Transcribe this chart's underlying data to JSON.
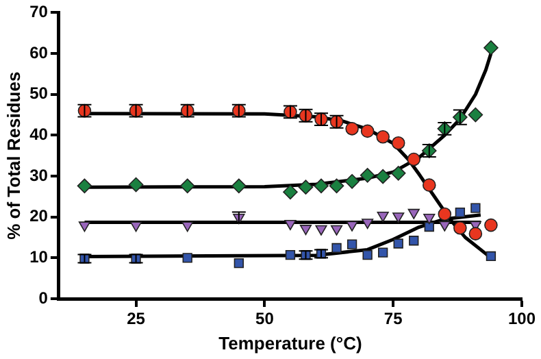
{
  "chart_data": {
    "type": "scatter",
    "xlabel": "Temperature (°C)",
    "ylabel": "% of Total Residues",
    "x": [
      15,
      25,
      35,
      45,
      55,
      58,
      61,
      64,
      67,
      70,
      73,
      76,
      79,
      82,
      85,
      88,
      91,
      94
    ],
    "xlim": [
      10,
      100
    ],
    "xticks": [
      25,
      50,
      75,
      100
    ],
    "ylim": [
      0,
      70
    ],
    "yticks": [
      0,
      10,
      20,
      30,
      40,
      50,
      60,
      70
    ],
    "grid": false,
    "legend": false,
    "series": [
      {
        "type": "line",
        "color": "#000000",
        "marker": "none",
        "x": [
          15,
          50,
          60,
          65,
          70,
          75,
          78,
          80,
          83,
          86,
          89,
          92,
          94
        ],
        "values": [
          45.3,
          45.2,
          44.5,
          43.5,
          41.5,
          38,
          34,
          30.5,
          25,
          19.5,
          15,
          12,
          10
        ]
      },
      {
        "type": "line",
        "color": "#000000",
        "marker": "none",
        "x": [
          15,
          50,
          60,
          70,
          75,
          80,
          85,
          88,
          91,
          93,
          94
        ],
        "values": [
          27.3,
          27.4,
          28,
          29.5,
          31,
          34.5,
          40,
          44,
          50,
          56,
          60
        ]
      },
      {
        "type": "line",
        "color": "#000000",
        "marker": "none",
        "x": [
          15,
          92
        ],
        "values": [
          18.7,
          18.7
        ]
      },
      {
        "type": "line",
        "color": "#000000",
        "marker": "none",
        "x": [
          15,
          60,
          70,
          75,
          80,
          85,
          92
        ],
        "values": [
          10.3,
          10.6,
          12,
          14.5,
          17.5,
          19.5,
          20.5
        ]
      },
      {
        "color": "#e8361f",
        "marker": "circle",
        "values": [
          46,
          46,
          46,
          46,
          45.7,
          44.8,
          43.9,
          43.3,
          41.6,
          41.0,
          39.6,
          38.1,
          34.1,
          27.8,
          20.7,
          17.3,
          15.9,
          18.0
        ],
        "errors": [
          1.5,
          1.5,
          1.5,
          1.5,
          1.5,
          1.5,
          1.5,
          1.5,
          null,
          null,
          null,
          null,
          null,
          null,
          null,
          null,
          null,
          null
        ]
      },
      {
        "color": "#1a8040",
        "marker": "diamond",
        "values": [
          27.6,
          27.9,
          27.6,
          27.6,
          26.1,
          27.3,
          27.6,
          27.6,
          28.7,
          30.2,
          29.9,
          30.7,
          null,
          36.2,
          41.6,
          44.4,
          45.0,
          61.4
        ],
        "errors": [
          null,
          null,
          null,
          null,
          null,
          null,
          null,
          null,
          null,
          null,
          null,
          null,
          null,
          1.5,
          1.5,
          1.8,
          null,
          null
        ]
      },
      {
        "color": "#9966bb",
        "marker": "triangle",
        "values": [
          18,
          18,
          18,
          19.9,
          18.4,
          17.2,
          17.1,
          17.1,
          18.1,
          18.7,
          20.4,
          20.2,
          21.1,
          19.9,
          18.1,
          null,
          18.1,
          null
        ],
        "errors": [
          null,
          null,
          null,
          1.3,
          null,
          null,
          null,
          null,
          null,
          null,
          null,
          null,
          null,
          null,
          null,
          null,
          null,
          null
        ]
      },
      {
        "color": "#3355aa",
        "marker": "square",
        "values": [
          9.8,
          9.8,
          10.0,
          8.7,
          10.7,
          10.7,
          11.0,
          12.4,
          13.3,
          10.7,
          11.3,
          13.5,
          14.2,
          17.6,
          null,
          21.1,
          22.2,
          10.4
        ],
        "errors": [
          1,
          1,
          null,
          null,
          null,
          1,
          1,
          null,
          null,
          null,
          null,
          null,
          null,
          null,
          null,
          null,
          null,
          null
        ]
      }
    ]
  }
}
